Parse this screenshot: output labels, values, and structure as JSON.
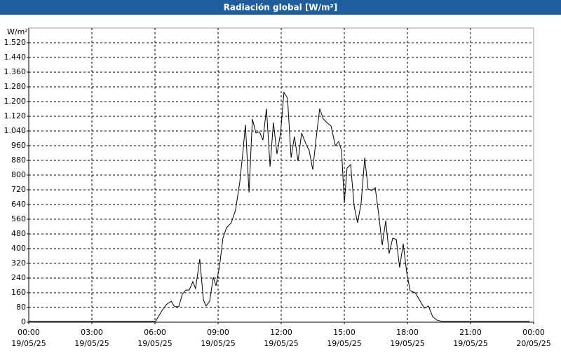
{
  "chart_data": {
    "type": "line",
    "title": "Radiación global [W/m²]",
    "y_label": "W/m²",
    "x": [
      0,
      6.03,
      6.3,
      6.53,
      6.77,
      6.93,
      7.13,
      7.3,
      7.47,
      7.63,
      7.8,
      7.93,
      8.13,
      8.3,
      8.43,
      8.6,
      8.77,
      8.9,
      9.07,
      9.23,
      9.4,
      9.63,
      9.83,
      10.03,
      10.17,
      10.3,
      10.47,
      10.63,
      10.8,
      10.97,
      11.13,
      11.3,
      11.47,
      11.63,
      11.8,
      11.97,
      12.13,
      12.3,
      12.47,
      12.63,
      12.8,
      12.97,
      13.17,
      13.33,
      13.5,
      13.67,
      13.83,
      14,
      14.17,
      14.37,
      14.57,
      14.73,
      14.87,
      15,
      15.13,
      15.3,
      15.47,
      15.63,
      15.8,
      15.97,
      16.13,
      16.3,
      16.47,
      16.63,
      16.8,
      16.97,
      17.13,
      17.3,
      17.47,
      17.63,
      17.8,
      17.97,
      18.13,
      18.37,
      18.57,
      18.8,
      19,
      19.2,
      19.4,
      19.63,
      23.8
    ],
    "series": [
      {
        "name": "Radiación global",
        "color": "#000000",
        "values": [
          5,
          5,
          57,
          95,
          114,
          84,
          84,
          152,
          175,
          175,
          221,
          183,
          343,
          122,
          88,
          114,
          244,
          198,
          305,
          457,
          514,
          541,
          610,
          762,
          914,
          1074,
          705,
          1105,
          1029,
          1036,
          990,
          1162,
          846,
          1086,
          914,
          1029,
          1250,
          1219,
          895,
          1010,
          876,
          1029,
          971,
          933,
          830,
          1010,
          1162,
          1105,
          1086,
          1067,
          960,
          983,
          933,
          648,
          838,
          857,
          629,
          541,
          648,
          895,
          724,
          716,
          731,
          591,
          419,
          552,
          373,
          457,
          450,
          297,
          427,
          267,
          171,
          160,
          122,
          76,
          88,
          30,
          11,
          5,
          5
        ]
      }
    ],
    "xlim": [
      0,
      24
    ],
    "ylim": [
      0,
      1600
    ],
    "xticks": [
      {
        "value": 0,
        "label": "00:00",
        "date": "19/05/25"
      },
      {
        "value": 3,
        "label": "03:00",
        "date": "19/05/25"
      },
      {
        "value": 6,
        "label": "06:00",
        "date": "19/05/25"
      },
      {
        "value": 9,
        "label": "09:00",
        "date": "19/05/25"
      },
      {
        "value": 12,
        "label": "12:00",
        "date": "19/05/25"
      },
      {
        "value": 15,
        "label": "15:00",
        "date": "19/05/25"
      },
      {
        "value": 18,
        "label": "18:00",
        "date": "19/05/25"
      },
      {
        "value": 21,
        "label": "21:00",
        "date": "19/05/25"
      },
      {
        "value": 24,
        "label": "00:00",
        "date": "20/05/25"
      }
    ],
    "yticks": [
      0,
      80,
      160,
      240,
      320,
      400,
      480,
      560,
      640,
      720,
      800,
      880,
      960,
      {
        "value": 1040,
        "label": "1.040"
      },
      {
        "value": 1120,
        "label": "1.120"
      },
      {
        "value": 1200,
        "label": "1.200"
      },
      {
        "value": 1280,
        "label": "1.280"
      },
      {
        "value": 1360,
        "label": "1.360"
      },
      {
        "value": 1440,
        "label": "1.440"
      },
      {
        "value": 1520,
        "label": "1.520"
      }
    ],
    "grid": true
  }
}
